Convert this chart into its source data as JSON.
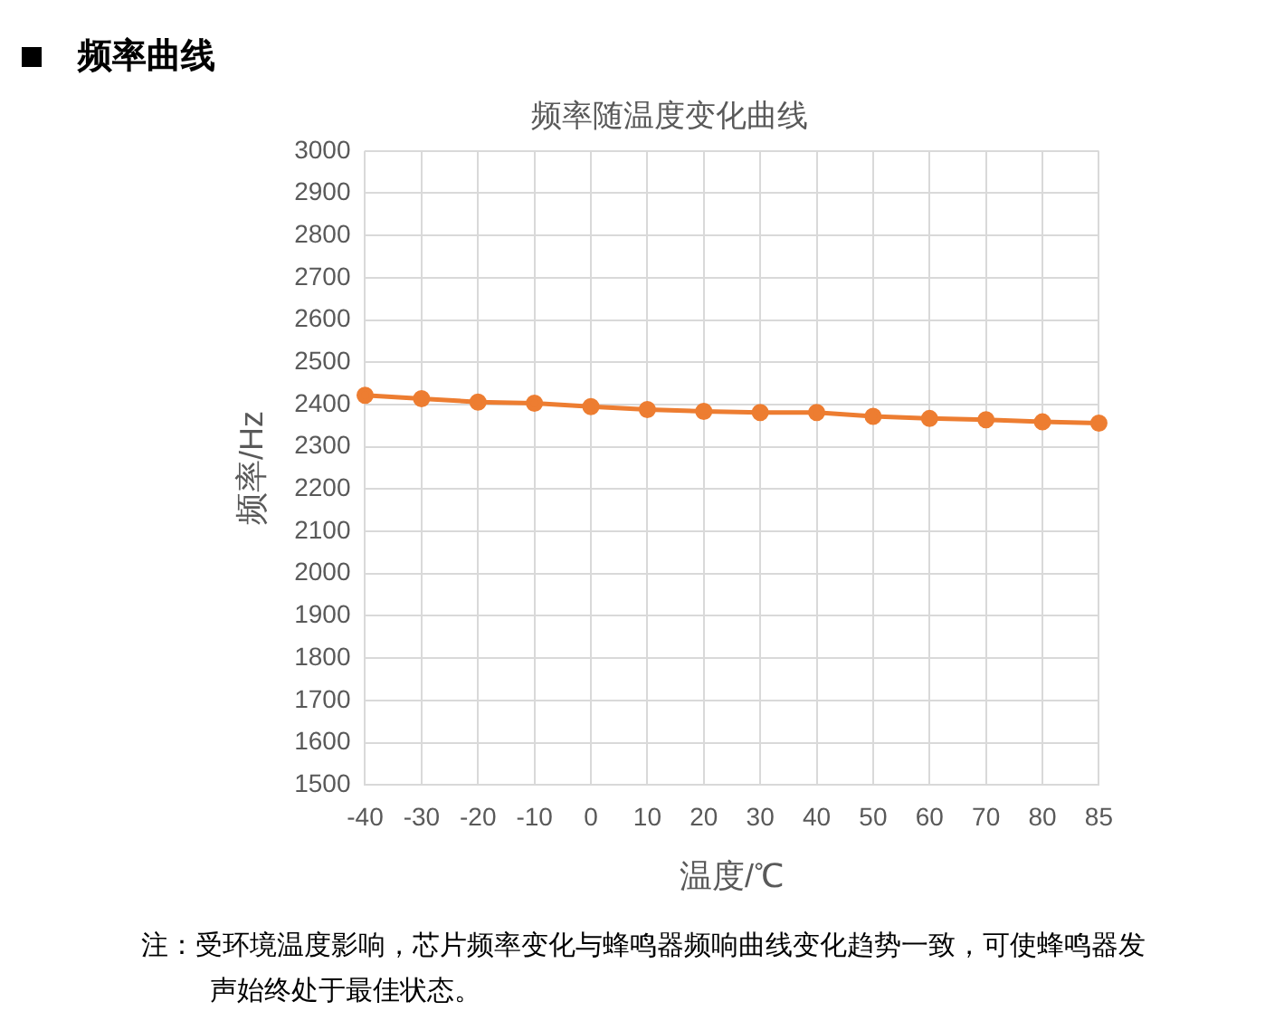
{
  "chart_data": {
    "type": "line",
    "title": "频率随温度变化曲线",
    "xlabel": "温度/℃",
    "ylabel": "频率/Hz",
    "categories": [
      "-40",
      "-30",
      "-20",
      "-10",
      "0",
      "10",
      "20",
      "30",
      "40",
      "50",
      "60",
      "70",
      "80",
      "85"
    ],
    "series": [
      {
        "color": "#ed7d31",
        "values": [
          2422,
          2414,
          2406,
          2403,
          2395,
          2388,
          2384,
          2381,
          2381,
          2372,
          2367,
          2364,
          2359,
          2356
        ]
      }
    ],
    "ylim": [
      1500,
      3000
    ],
    "yticks": [
      1500,
      1600,
      1700,
      1800,
      1900,
      2000,
      2100,
      2200,
      2300,
      2400,
      2500,
      2600,
      2700,
      2800,
      2900,
      3000
    ],
    "grid": true,
    "legend": false,
    "marker": "circle",
    "line_style": "solid",
    "annotations": [
      "频率曲线",
      "注：受环境温度影响，芯片频率变化与蜂鸣器频响曲线变化趋势一致，可使蜂鸣器发声始终处于最佳状态。"
    ]
  }
}
